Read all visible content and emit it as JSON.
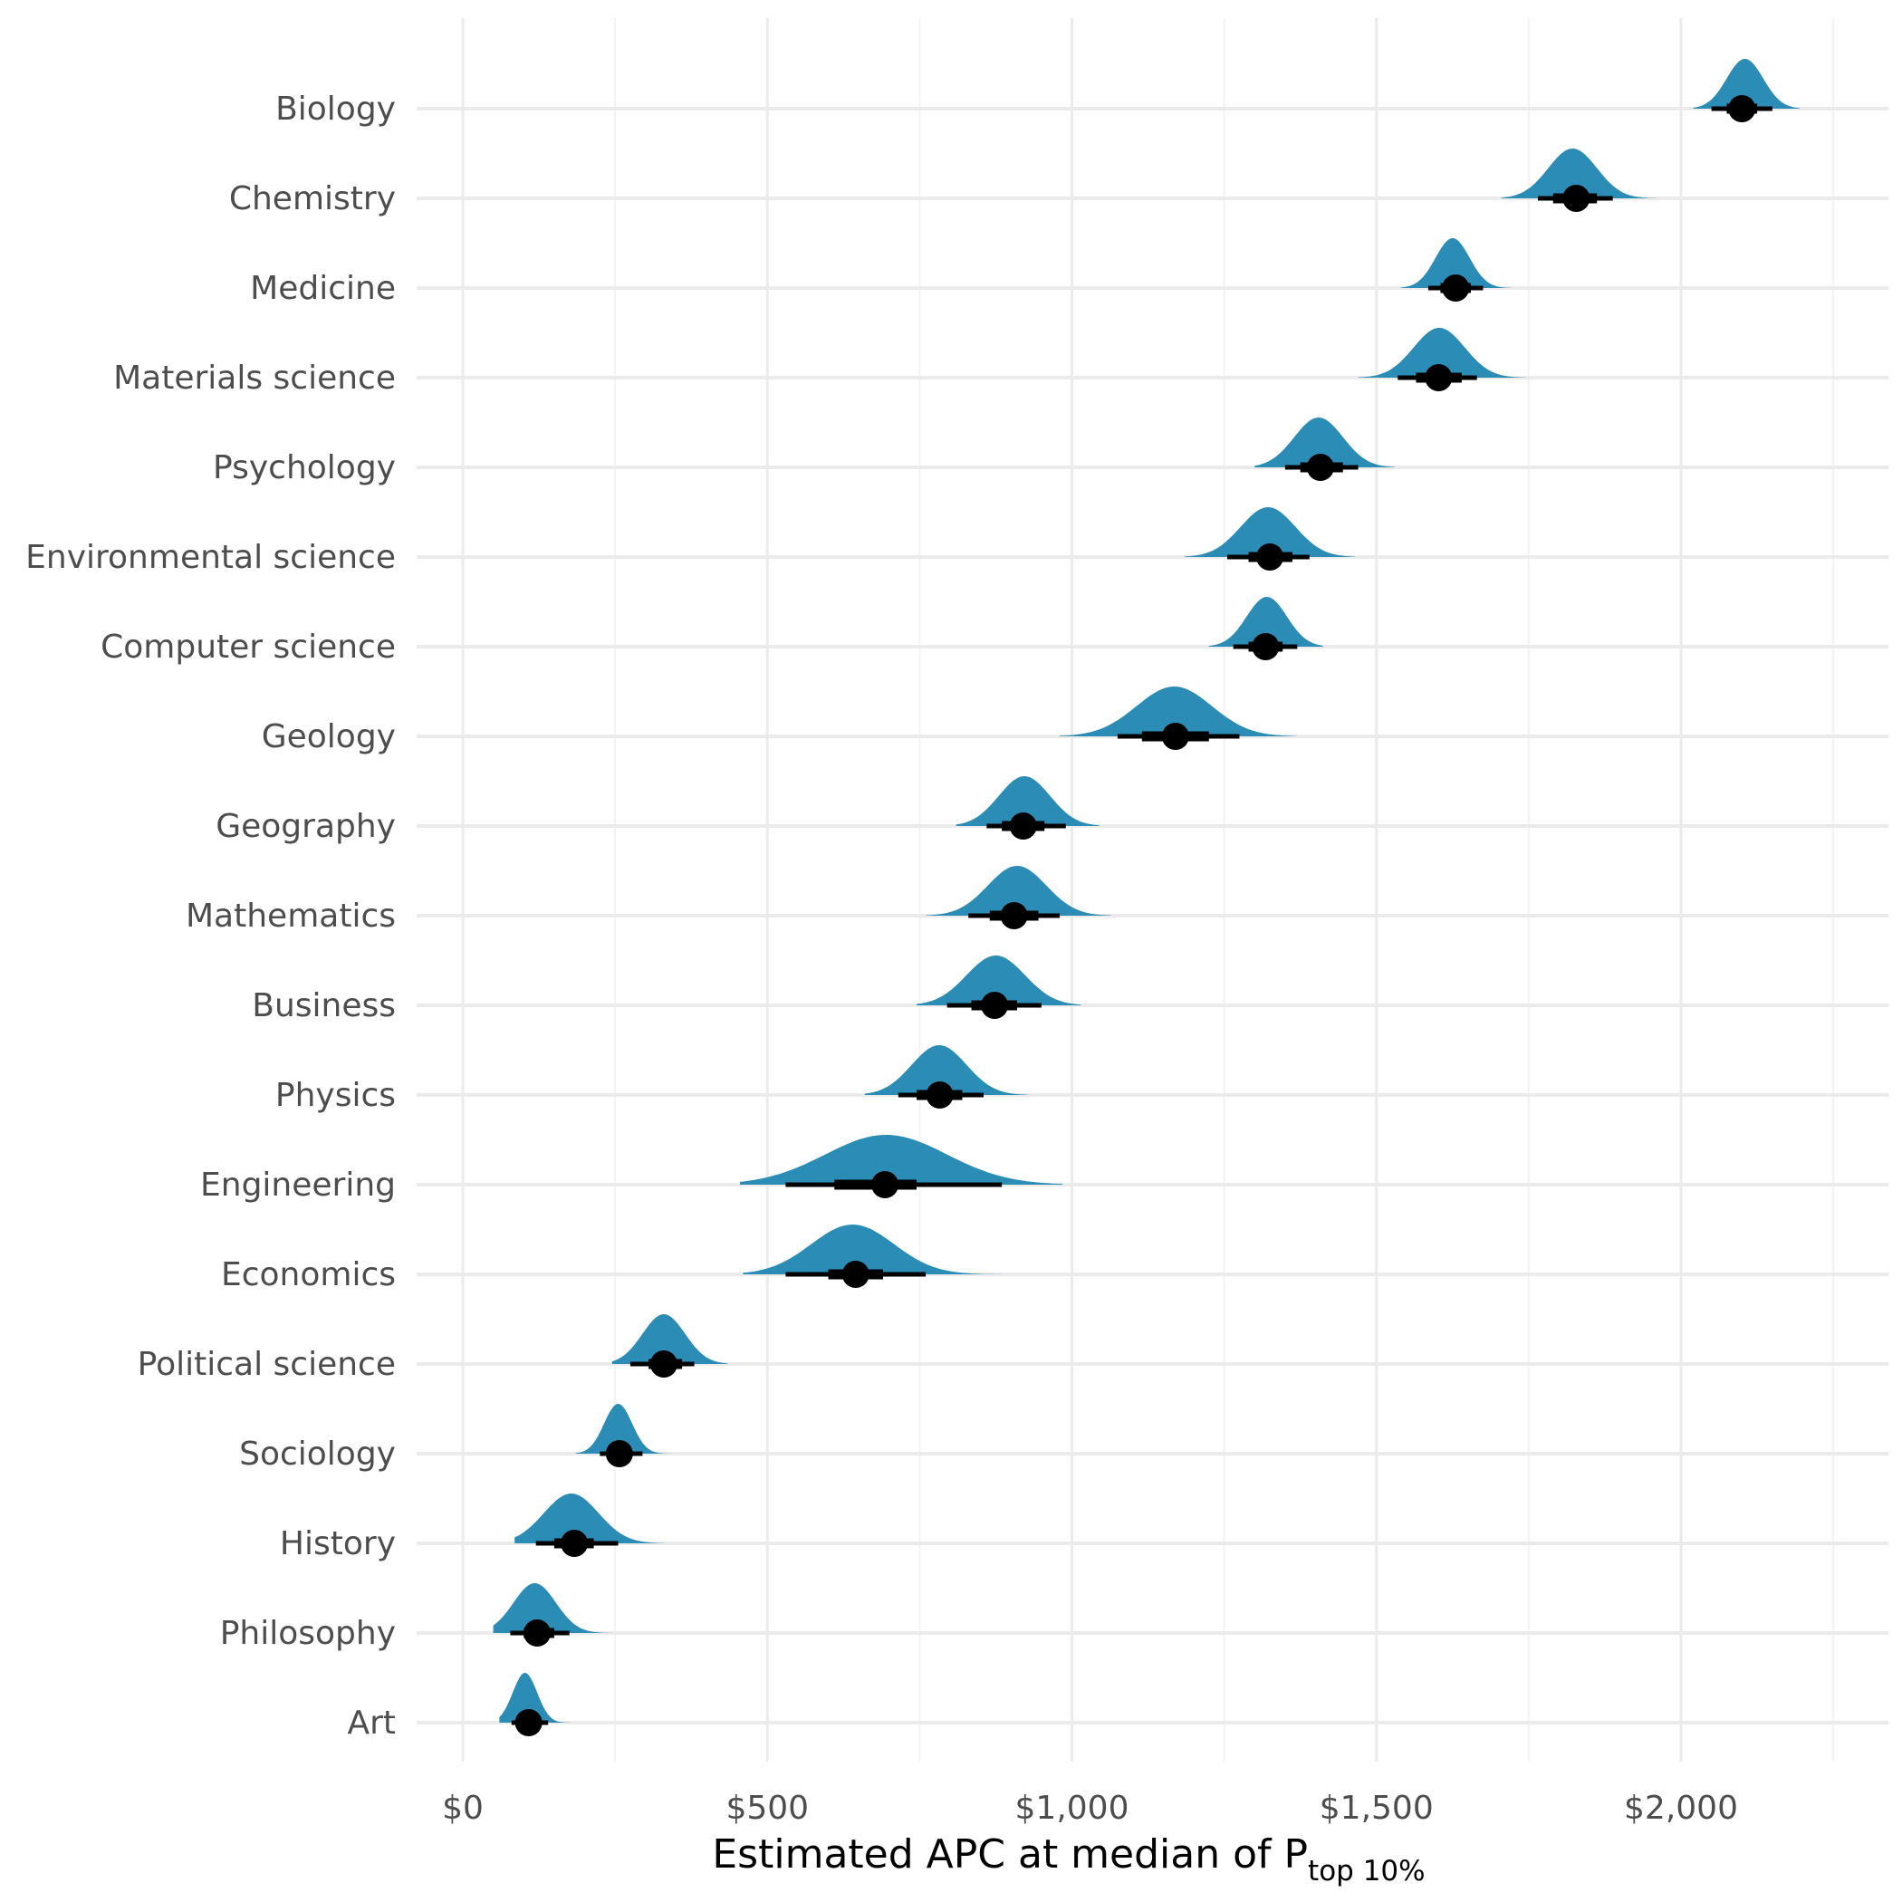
{
  "chart_data": {
    "type": "halfeye",
    "xlabel": "Estimated APC at median of P",
    "xlabel_subscript": "top 10%",
    "xlim": [
      -80,
      2350
    ],
    "x_ticks": [
      0,
      500,
      1000,
      1500,
      2000
    ],
    "x_tick_labels": [
      "$0",
      "$500",
      "$1,000",
      "$1,500",
      "$2,000"
    ],
    "grid": true,
    "colors": {
      "density": "#2b8cb6",
      "point": "#000000",
      "grid_major": "#ebebeb",
      "grid_minor": "#f3f3f3"
    },
    "categories": [
      "Biology",
      "Chemistry",
      "Medicine",
      "Materials science",
      "Psychology",
      "Environmental science",
      "Computer science",
      "Geology",
      "Geography",
      "Mathematics",
      "Business",
      "Physics",
      "Engineering",
      "Economics",
      "Political science",
      "Sociology",
      "History",
      "Philosophy",
      "Art"
    ],
    "series": [
      {
        "category": "Biology",
        "median": 2100,
        "mode": 2105,
        "sd": 30,
        "range": [
          2020,
          2195
        ],
        "ci66": [
          2075,
          2125
        ],
        "ci95": [
          2050,
          2150
        ]
      },
      {
        "category": "Chemistry",
        "median": 1828,
        "mode": 1822,
        "sd": 40,
        "range": [
          1705,
          1958
        ],
        "ci66": [
          1790,
          1862
        ],
        "ci95": [
          1765,
          1888
        ]
      },
      {
        "category": "Medicine",
        "median": 1630,
        "mode": 1625,
        "sd": 28,
        "range": [
          1540,
          1720
        ],
        "ci66": [
          1605,
          1655
        ],
        "ci95": [
          1585,
          1675
        ]
      },
      {
        "category": "Materials science",
        "median": 1602,
        "mode": 1603,
        "sd": 42,
        "range": [
          1470,
          1745
        ],
        "ci66": [
          1565,
          1640
        ],
        "ci95": [
          1535,
          1665
        ]
      },
      {
        "category": "Psychology",
        "median": 1408,
        "mode": 1405,
        "sd": 40,
        "range": [
          1300,
          1530
        ],
        "ci66": [
          1375,
          1445
        ],
        "ci95": [
          1350,
          1470
        ]
      },
      {
        "category": "Environmental science",
        "median": 1325,
        "mode": 1322,
        "sd": 45,
        "range": [
          1185,
          1465
        ],
        "ci66": [
          1290,
          1362
        ],
        "ci95": [
          1255,
          1390
        ]
      },
      {
        "category": "Computer science",
        "median": 1318,
        "mode": 1320,
        "sd": 33,
        "range": [
          1225,
          1412
        ],
        "ci66": [
          1290,
          1346
        ],
        "ci95": [
          1265,
          1370
        ]
      },
      {
        "category": "Geology",
        "median": 1170,
        "mode": 1168,
        "sd": 62,
        "range": [
          980,
          1370
        ],
        "ci66": [
          1115,
          1225
        ],
        "ci95": [
          1075,
          1275
        ]
      },
      {
        "category": "Geography",
        "median": 920,
        "mode": 922,
        "sd": 42,
        "range": [
          810,
          1045
        ],
        "ci66": [
          885,
          955
        ],
        "ci95": [
          860,
          990
        ]
      },
      {
        "category": "Mathematics",
        "median": 905,
        "mode": 910,
        "sd": 48,
        "range": [
          760,
          1065
        ],
        "ci66": [
          865,
          945
        ],
        "ci95": [
          830,
          980
        ]
      },
      {
        "category": "Business",
        "median": 873,
        "mode": 875,
        "sd": 48,
        "range": [
          745,
          1015
        ],
        "ci66": [
          835,
          910
        ],
        "ci95": [
          795,
          950
        ]
      },
      {
        "category": "Physics",
        "median": 783,
        "mode": 782,
        "sd": 45,
        "range": [
          660,
          930
        ],
        "ci66": [
          745,
          820
        ],
        "ci95": [
          715,
          855
        ]
      },
      {
        "category": "Engineering",
        "median": 693,
        "mode": 695,
        "sd": 100,
        "range": [
          455,
          985
        ],
        "ci66": [
          610,
          745
        ],
        "ci95": [
          530,
          885
        ]
      },
      {
        "category": "Economics",
        "median": 645,
        "mode": 640,
        "sd": 68,
        "range": [
          460,
          885
        ],
        "ci66": [
          600,
          690
        ],
        "ci95": [
          530,
          760
        ]
      },
      {
        "category": "Political science",
        "median": 330,
        "mode": 330,
        "sd": 35,
        "range": [
          245,
          435
        ],
        "ci66": [
          305,
          360
        ],
        "ci95": [
          275,
          380
        ]
      },
      {
        "category": "Sociology",
        "median": 257,
        "mode": 255,
        "sd": 23,
        "range": [
          185,
          350
        ],
        "ci66": [
          240,
          275
        ],
        "ci95": [
          225,
          295
        ]
      },
      {
        "category": "History",
        "median": 183,
        "mode": 178,
        "sd": 45,
        "range": [
          85,
          330
        ],
        "ci66": [
          150,
          215
        ],
        "ci95": [
          120,
          255
        ]
      },
      {
        "category": "Philosophy",
        "median": 122,
        "mode": 118,
        "sd": 35,
        "range": [
          50,
          245
        ],
        "ci66": [
          100,
          150
        ],
        "ci95": [
          78,
          175
        ]
      },
      {
        "category": "Art",
        "median": 108,
        "mode": 102,
        "sd": 20,
        "range": [
          60,
          180
        ],
        "ci66": [
          95,
          125
        ],
        "ci95": [
          80,
          140
        ]
      }
    ]
  }
}
